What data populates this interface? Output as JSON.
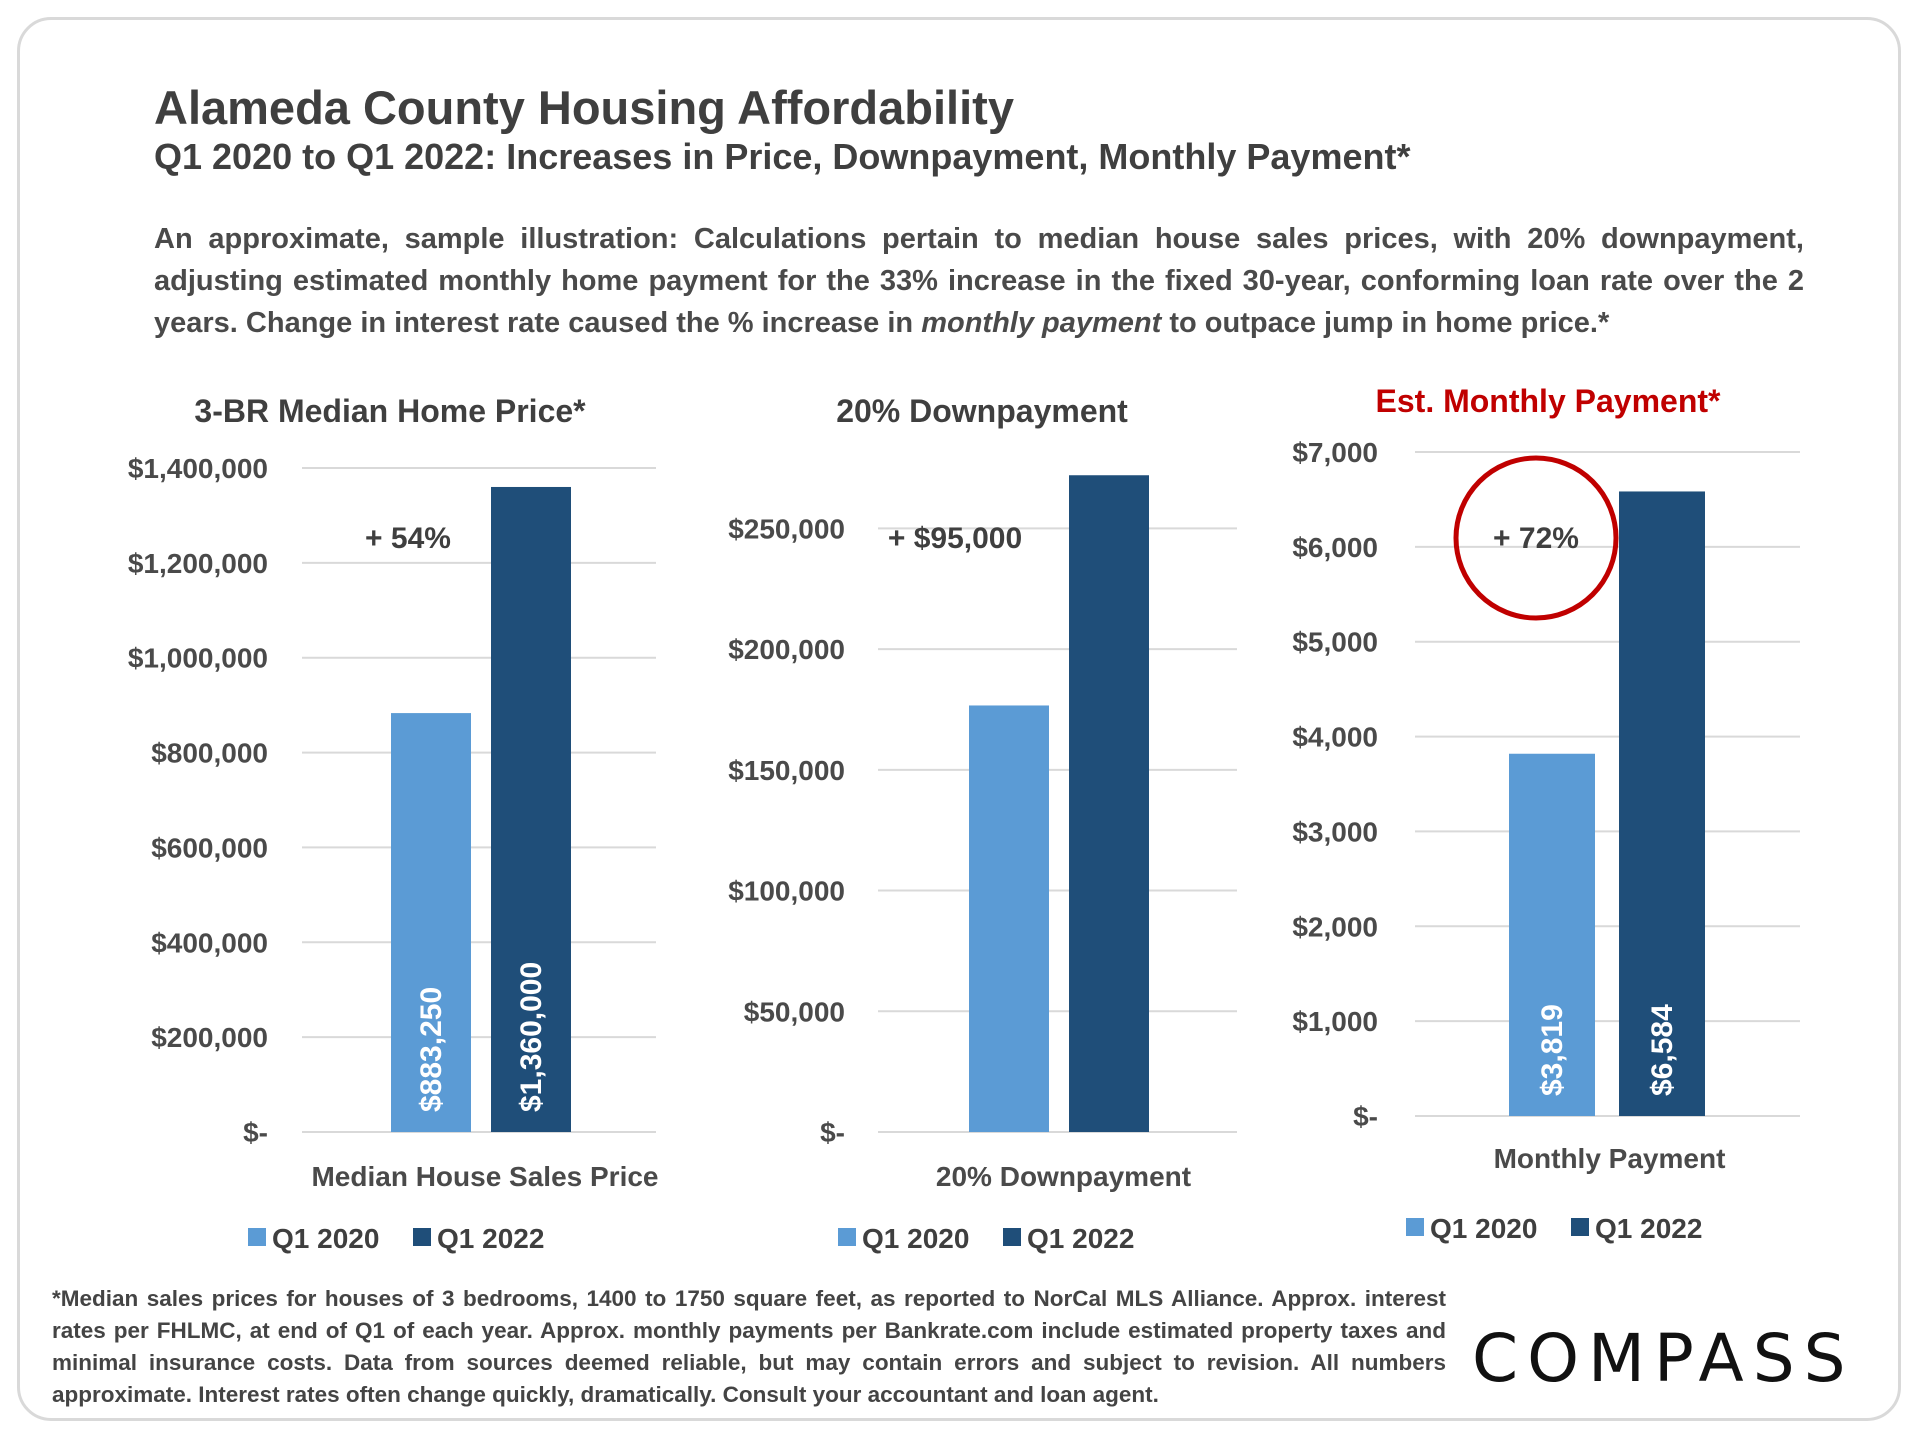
{
  "header": {
    "title": "Alameda County Housing Affordability",
    "subtitle": "Q1 2020 to Q1 2022: Increases in Price, Downpayment, Monthly Payment*",
    "desc_part1": "An approximate, sample illustration: Calculations pertain to median house sales prices, with 20% downpayment, adjusting estimated monthly home payment for the 33% increase in the fixed 30-year, conforming loan rate over the 2 years. Change in interest rate caused the % increase in ",
    "desc_emphasis": "monthly payment",
    "desc_part2": " to outpace jump in home price.*"
  },
  "colors": {
    "q1_2020": "#5b9bd5",
    "q1_2022": "#1f4e79",
    "highlight_title": "#c00000",
    "circle": "#c00000",
    "grid": "#d9d9d9",
    "axis_text": "#4a4a4a"
  },
  "chart_data": [
    {
      "type": "bar",
      "title": "3-BR Median Home Price*",
      "categories": [
        "Median House Sales Price"
      ],
      "series": [
        {
          "name": "Q1 2020",
          "values": [
            883250
          ]
        },
        {
          "name": "Q1 2022",
          "values": [
            1360000
          ]
        }
      ],
      "data_labels": [
        "$883,250",
        "$1,360,000"
      ],
      "ylim": [
        0,
        1400000
      ],
      "yticks": [
        0,
        200000,
        400000,
        600000,
        800000,
        1000000,
        1200000,
        1400000
      ],
      "ytick_labels": [
        "$-",
        "$200,000",
        "$400,000",
        "$600,000",
        "$800,000",
        "$1,000,000",
        "$1,200,000",
        "$1,400,000"
      ],
      "annotation": "+ 54%",
      "legend": [
        "Q1 2020",
        "Q1 2022"
      ],
      "highlight": false
    },
    {
      "type": "bar",
      "title": "20% Downpayment",
      "categories": [
        "20% Downpayment"
      ],
      "series": [
        {
          "name": "Q1 2020",
          "values": [
            176650
          ]
        },
        {
          "name": "Q1 2022",
          "values": [
            272000
          ]
        }
      ],
      "data_labels": [],
      "ylim": [
        0,
        275000
      ],
      "yticks": [
        0,
        50000,
        100000,
        150000,
        200000,
        250000
      ],
      "ytick_labels": [
        "$-",
        "$50,000",
        "$100,000",
        "$150,000",
        "$200,000",
        "$250,000"
      ],
      "annotation": "+ $95,000",
      "legend": [
        "Q1 2020",
        "Q1 2022"
      ],
      "highlight": false
    },
    {
      "type": "bar",
      "title": "Est. Monthly Payment*",
      "categories": [
        "Monthly Payment"
      ],
      "series": [
        {
          "name": "Q1 2020",
          "values": [
            3819
          ]
        },
        {
          "name": "Q1 2022",
          "values": [
            6584
          ]
        }
      ],
      "data_labels": [
        "$3,819",
        "$6,584"
      ],
      "ylim": [
        0,
        7000
      ],
      "yticks": [
        0,
        1000,
        2000,
        3000,
        4000,
        5000,
        6000,
        7000
      ],
      "ytick_labels": [
        "$-",
        "$1,000",
        "$2,000",
        "$3,000",
        "$4,000",
        "$5,000",
        "$6,000",
        "$7,000"
      ],
      "annotation": "+ 72%",
      "legend": [
        "Q1 2020",
        "Q1 2022"
      ],
      "highlight": true
    }
  ],
  "footnote": "*Median sales prices for houses of 3 bedrooms, 1400 to 1750 square feet, as reported to NorCal MLS Alliance. Approx. interest rates per FHLMC, at end of Q1 of each year. Approx. monthly payments per Bankrate.com include estimated property taxes and minimal insurance costs. Data from sources deemed reliable, but may contain errors and subject to revision. All numbers approximate. Interest rates often change quickly, dramatically. Consult your accountant and loan agent.",
  "logo": "COMPASS"
}
